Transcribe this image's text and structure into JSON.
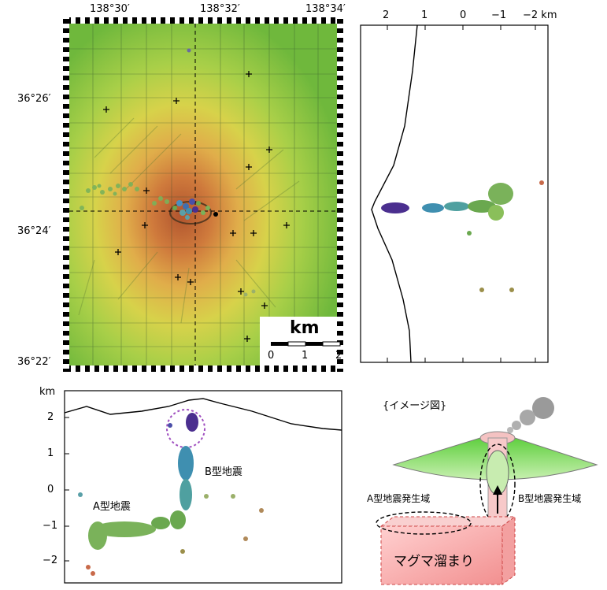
{
  "map": {
    "lon_labels": [
      "138°30′",
      "138°32′",
      "138°34′"
    ],
    "lat_labels": [
      "36°26′",
      "36°24′",
      "36°22′"
    ],
    "scale_unit": "km",
    "scale_ticks": [
      "0",
      "1",
      "2"
    ]
  },
  "cross_section_ns": {
    "top_ticks": [
      "2",
      "1",
      "0",
      "−1",
      "−2 km"
    ]
  },
  "cross_section_depth": {
    "unit": "km",
    "y_ticks": [
      "2",
      "1",
      "0",
      "−1",
      "−2"
    ],
    "label_a": "A型地震",
    "label_b": "B型地震"
  },
  "image_diagram": {
    "title": "{イメージ図}",
    "label_a_zone": "A型地震発生域",
    "label_b_zone": "B型地震発生域",
    "magma_label": "マグマ溜まり"
  },
  "colors": {
    "shallow_event": "#4b2f8f",
    "mid_event": "#3f8fb0",
    "deep_event": "#6aa84f",
    "magma_fill": "#f6b6b6",
    "cone_fill": "#8fd46a"
  }
}
